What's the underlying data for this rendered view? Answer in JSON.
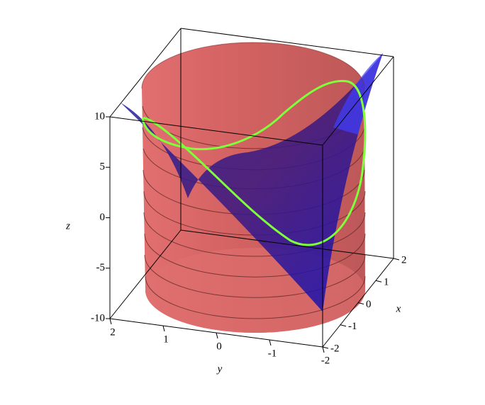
{
  "chart_data": {
    "type": "surface3d",
    "xlabel": "x",
    "ylabel": "y",
    "zlabel": "z",
    "xlim": [
      -2,
      2
    ],
    "ylim": [
      -2,
      2
    ],
    "zlim": [
      -10,
      10
    ],
    "xticks": [
      -2,
      -1,
      0,
      1,
      2
    ],
    "yticks": [
      -2,
      -1,
      0,
      1,
      2
    ],
    "zticks": [
      -10,
      -5,
      0,
      5,
      10
    ]
  }
}
